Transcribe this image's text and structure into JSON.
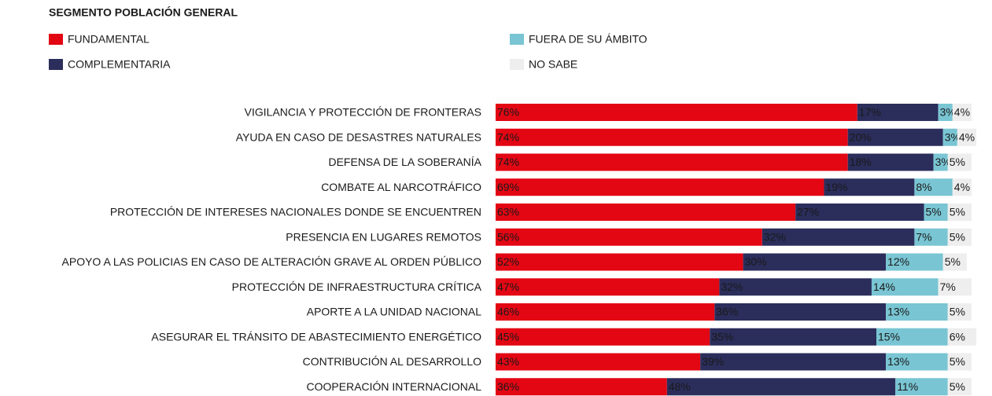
{
  "chart_data": {
    "type": "stacked-bar",
    "orientation": "horizontal",
    "title": "SEGMENTO POBLACIÓN GENERAL",
    "categories": [
      "VIGILANCIA Y PROTECCIÓN DE FRONTERAS",
      "AYUDA EN CASO DE DESASTRES NATURALES",
      "DEFENSA DE LA SOBERANÍA",
      "COMBATE AL NARCOTRÁFICO",
      "PROTECCIÓN DE INTERESES NACIONALES DONDE SE ENCUENTREN",
      "PRESENCIA EN LUGARES REMOTOS",
      "APOYO A LAS POLICIAS EN CASO DE ALTERACIÓN GRAVE AL ORDEN PÚBLICO",
      "PROTECCIÓN DE INFRAESTRUCTURA CRÍTICA",
      "APORTE A LA UNIDAD NACIONAL",
      "ASEGURAR EL TRÁNSITO DE ABASTECIMIENTO ENERGÉTICO",
      "CONTRIBUCIÓN AL DESARROLLO",
      "COOPERACIÓN INTERNACIONAL"
    ],
    "series": [
      {
        "name": "FUNDAMENTAL",
        "color": "#e30613",
        "label_color": "#ffffff",
        "values": [
          76,
          74,
          74,
          69,
          63,
          56,
          52,
          47,
          46,
          45,
          43,
          36
        ],
        "value_labels": [
          "76%",
          "74%",
          "74%",
          "69%",
          "63%",
          "56%",
          "52%",
          "47%",
          "46%",
          "45%",
          "43%",
          "36%"
        ]
      },
      {
        "name": "COMPLEMENTARIA",
        "color": "#2b2d5b",
        "label_color": "#ffffff",
        "values": [
          17,
          20,
          18,
          19,
          27,
          32,
          30,
          32,
          36,
          35,
          39,
          48
        ],
        "value_labels": [
          "17%",
          "20%",
          "18%",
          "19%",
          "27%",
          "32%",
          "30%",
          "32%",
          "36%",
          "35%",
          "39%",
          "48%"
        ]
      },
      {
        "name": "FUERA DE SU ÁMBITO",
        "color": "#79c5d3",
        "label_color": "#1a1a1a",
        "values": [
          3,
          3,
          3,
          8,
          5,
          7,
          12,
          14,
          13,
          15,
          13,
          11
        ],
        "value_labels": [
          "3%",
          "3%",
          "3%",
          "8%",
          "5%",
          "7%",
          "12%",
          "14%",
          "13%",
          "15%",
          "13%",
          "11%"
        ]
      },
      {
        "name": "NO SABE",
        "color": "#eeeeee",
        "label_color": "#1a1a1a",
        "values": [
          4,
          4,
          5,
          4,
          5,
          5,
          5,
          7,
          5,
          6,
          5,
          5
        ],
        "value_labels": [
          "4%",
          "4%",
          "5%",
          "4%",
          "5%",
          "5%",
          "5%",
          "7%",
          "5%",
          "6%",
          "5%",
          "5%"
        ]
      }
    ]
  }
}
